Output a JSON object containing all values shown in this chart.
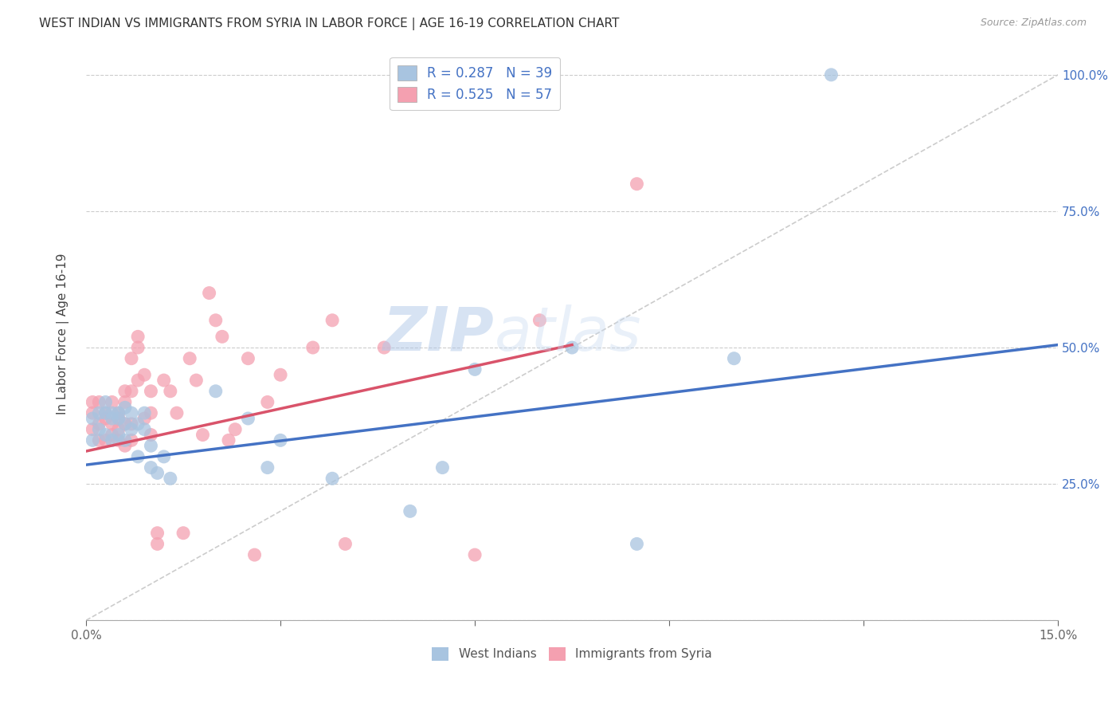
{
  "title": "WEST INDIAN VS IMMIGRANTS FROM SYRIA IN LABOR FORCE | AGE 16-19 CORRELATION CHART",
  "source": "Source: ZipAtlas.com",
  "ylabel": "In Labor Force | Age 16-19",
  "xlim": [
    0.0,
    0.15
  ],
  "ylim": [
    0.0,
    1.05
  ],
  "xticks": [
    0.0,
    0.03,
    0.06,
    0.09,
    0.12,
    0.15
  ],
  "xticklabels": [
    "0.0%",
    "",
    "",
    "",
    "",
    "15.0%"
  ],
  "yticks": [
    0.0,
    0.25,
    0.5,
    0.75,
    1.0
  ],
  "yticklabels": [
    "",
    "25.0%",
    "50.0%",
    "75.0%",
    "100.0%"
  ],
  "west_indian_R": 0.287,
  "west_indian_N": 39,
  "syria_R": 0.525,
  "syria_N": 57,
  "west_indian_color": "#a8c4e0",
  "syria_color": "#f4a0b0",
  "west_indian_line_color": "#4472c4",
  "syria_line_color": "#d9536a",
  "diagonal_color": "#cccccc",
  "background_color": "#ffffff",
  "watermark_zip": "ZIP",
  "watermark_atlas": "atlas",
  "west_indian_x": [
    0.001,
    0.001,
    0.002,
    0.002,
    0.003,
    0.003,
    0.003,
    0.004,
    0.004,
    0.004,
    0.005,
    0.005,
    0.005,
    0.006,
    0.006,
    0.006,
    0.007,
    0.007,
    0.008,
    0.008,
    0.009,
    0.009,
    0.01,
    0.01,
    0.011,
    0.012,
    0.013,
    0.02,
    0.025,
    0.028,
    0.03,
    0.038,
    0.05,
    0.055,
    0.06,
    0.075,
    0.085,
    0.1,
    0.115
  ],
  "west_indian_y": [
    0.33,
    0.37,
    0.35,
    0.38,
    0.34,
    0.38,
    0.4,
    0.33,
    0.37,
    0.38,
    0.34,
    0.37,
    0.38,
    0.33,
    0.36,
    0.39,
    0.35,
    0.38,
    0.36,
    0.3,
    0.38,
    0.35,
    0.28,
    0.32,
    0.27,
    0.3,
    0.26,
    0.42,
    0.37,
    0.28,
    0.33,
    0.26,
    0.2,
    0.28,
    0.46,
    0.5,
    0.14,
    0.48,
    1.0
  ],
  "syria_x": [
    0.001,
    0.001,
    0.001,
    0.002,
    0.002,
    0.002,
    0.003,
    0.003,
    0.003,
    0.004,
    0.004,
    0.004,
    0.005,
    0.005,
    0.005,
    0.005,
    0.006,
    0.006,
    0.006,
    0.006,
    0.007,
    0.007,
    0.007,
    0.007,
    0.008,
    0.008,
    0.008,
    0.009,
    0.009,
    0.01,
    0.01,
    0.01,
    0.011,
    0.011,
    0.012,
    0.013,
    0.014,
    0.015,
    0.016,
    0.017,
    0.018,
    0.019,
    0.02,
    0.021,
    0.022,
    0.023,
    0.025,
    0.026,
    0.028,
    0.03,
    0.035,
    0.038,
    0.04,
    0.046,
    0.06,
    0.07,
    0.085
  ],
  "syria_y": [
    0.35,
    0.38,
    0.4,
    0.33,
    0.36,
    0.4,
    0.33,
    0.37,
    0.38,
    0.34,
    0.36,
    0.4,
    0.33,
    0.37,
    0.35,
    0.38,
    0.32,
    0.36,
    0.4,
    0.42,
    0.33,
    0.36,
    0.48,
    0.42,
    0.44,
    0.5,
    0.52,
    0.37,
    0.45,
    0.34,
    0.38,
    0.42,
    0.14,
    0.16,
    0.44,
    0.42,
    0.38,
    0.16,
    0.48,
    0.44,
    0.34,
    0.6,
    0.55,
    0.52,
    0.33,
    0.35,
    0.48,
    0.12,
    0.4,
    0.45,
    0.5,
    0.55,
    0.14,
    0.5,
    0.12,
    0.55,
    0.8
  ],
  "wi_line_x": [
    0.0,
    0.15
  ],
  "wi_line_y": [
    0.285,
    0.505
  ],
  "sy_line_x": [
    0.0,
    0.075
  ],
  "sy_line_y": [
    0.31,
    0.505
  ]
}
